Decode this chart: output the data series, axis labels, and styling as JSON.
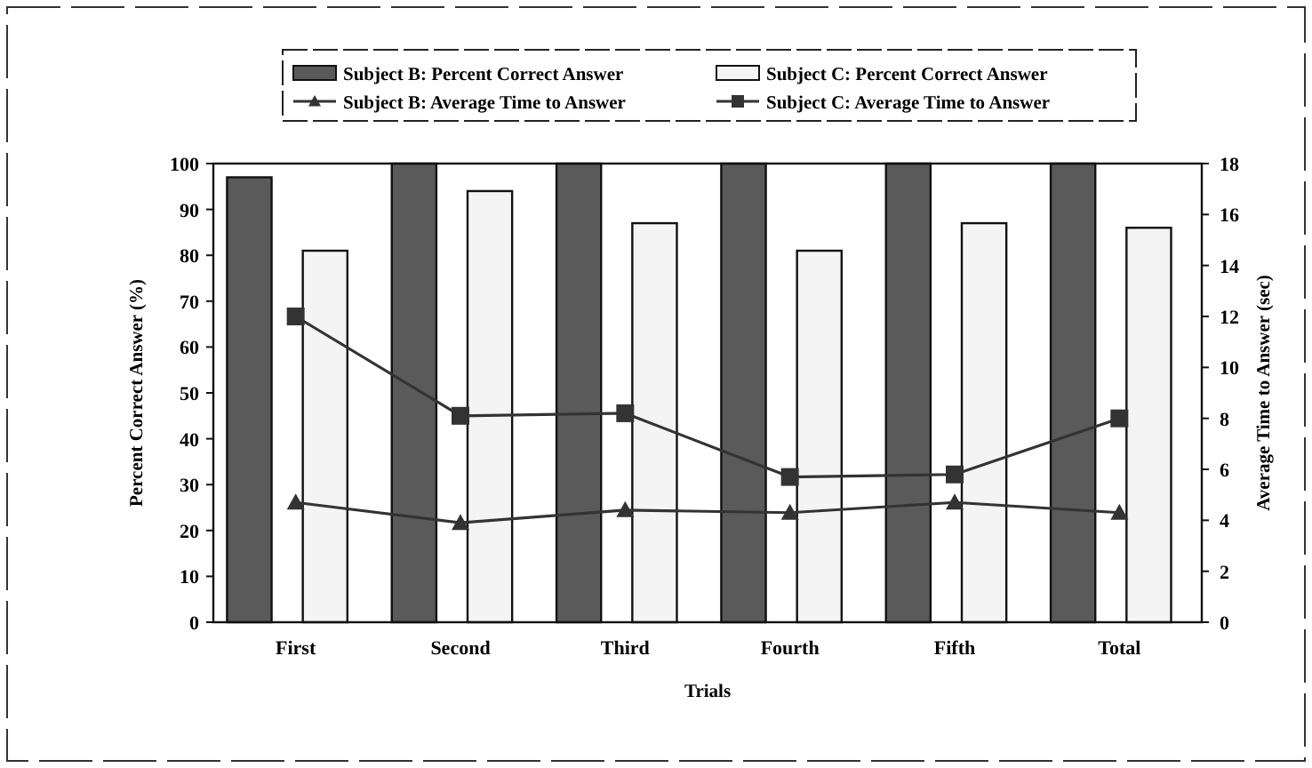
{
  "chart_data": {
    "type": "bar",
    "xlabel": "Trials",
    "ylabel": "Percent Correct Answer (%)",
    "y2label": "Average Time to Answer (sec)",
    "categories": [
      "First",
      "Second",
      "Third",
      "Fourth",
      "Fifth",
      "Total"
    ],
    "series": [
      {
        "name": "Subject B: Percent Correct Answer",
        "color": "#5a5a5a",
        "values": [
          97,
          100,
          100,
          100,
          100,
          100
        ]
      },
      {
        "name": "Subject C: Percent Correct Answer",
        "color": "#f4f4f4",
        "values": [
          81,
          94,
          87,
          81,
          87,
          86
        ]
      },
      {
        "name": "Subject B: Average Time to Answer",
        "type": "line",
        "axis": "y2",
        "marker": "triangle",
        "color": "#333333",
        "values": [
          4.7,
          3.9,
          4.4,
          4.3,
          4.7,
          4.3
        ]
      },
      {
        "name": "Subject C: Average Time to Answer",
        "type": "line",
        "axis": "y2",
        "marker": "square",
        "color": "#333333",
        "values": [
          12,
          8.1,
          8.2,
          5.7,
          5.8,
          8
        ]
      }
    ],
    "ylim": [
      0,
      100
    ],
    "yticks": [
      0,
      10,
      20,
      30,
      40,
      50,
      60,
      70,
      80,
      90,
      100
    ],
    "y2lim": [
      0,
      18
    ],
    "y2ticks": [
      0,
      2,
      4,
      6,
      8,
      10,
      12,
      14,
      16,
      18
    ],
    "legend": "top",
    "grid": false
  }
}
